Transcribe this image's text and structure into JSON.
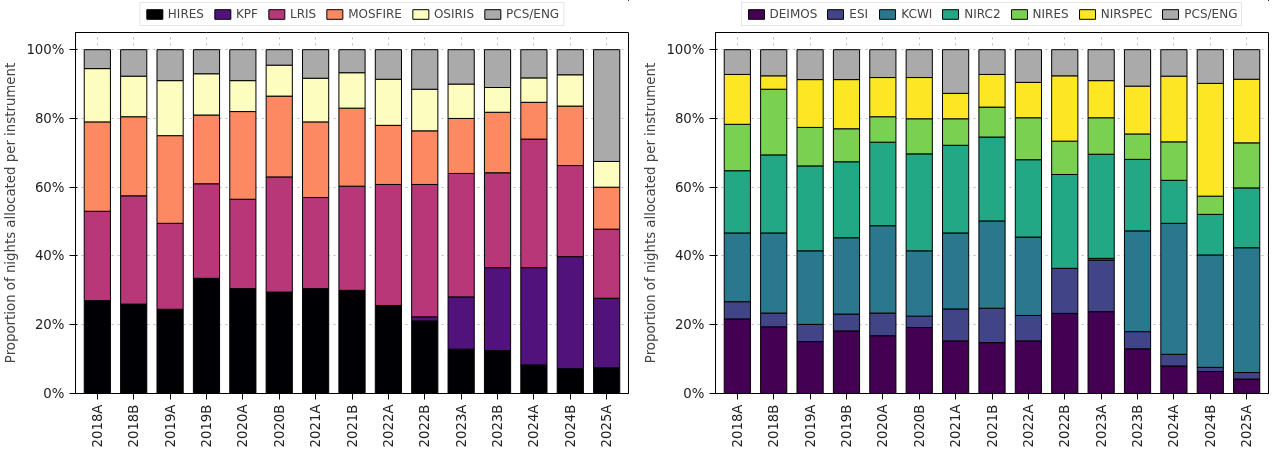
{
  "chart_data": [
    {
      "type": "bar",
      "stacked": true,
      "ylabel": "Proportion of nights allocated per instrument",
      "categories": [
        "2018A",
        "2018B",
        "2019A",
        "2019B",
        "2020A",
        "2020B",
        "2021A",
        "2021B",
        "2022A",
        "2022B",
        "2023A",
        "2023B",
        "2024A",
        "2024B",
        "2025A"
      ],
      "ylim": [
        0,
        105
      ],
      "yticks": [
        {
          "value": 0,
          "label": "0%"
        },
        {
          "value": 20,
          "label": "20%"
        },
        {
          "value": 40,
          "label": "40%"
        },
        {
          "value": 60,
          "label": "60%"
        },
        {
          "value": 80,
          "label": "80%"
        },
        {
          "value": 100,
          "label": "100%"
        }
      ],
      "grid": true,
      "legend": "top",
      "series": [
        {
          "name": "HIRES",
          "color": "#000004",
          "values": [
            27,
            26,
            24.5,
            33.5,
            30.5,
            29.5,
            30.5,
            30,
            25.6,
            21.1,
            12.9,
            12.5,
            8.3,
            7.2,
            7.5
          ]
        },
        {
          "name": "KPF",
          "color": "#51127c",
          "values": [
            0,
            0,
            0,
            0,
            0,
            0,
            0,
            0,
            0,
            1.2,
            15.2,
            24.1,
            28.3,
            32.6,
            20.2
          ]
        },
        {
          "name": "LRIS",
          "color": "#b73779",
          "values": [
            26,
            31.5,
            25,
            27.5,
            26,
            33.5,
            26.5,
            30.3,
            35.2,
            38.5,
            35.9,
            27.6,
            37.4,
            26.5,
            20.1
          ]
        },
        {
          "name": "MOSFIRE",
          "color": "#fc8961",
          "values": [
            26,
            23,
            25.5,
            20,
            25.5,
            23.5,
            22,
            22.7,
            17.2,
            15.6,
            16,
            17.6,
            10.7,
            17.3,
            12.2
          ]
        },
        {
          "name": "OSIRIS",
          "color": "#fcfdbf",
          "values": [
            15.5,
            11.8,
            16,
            12,
            9,
            9,
            12.7,
            10.3,
            13.4,
            12.1,
            10,
            7.2,
            7.1,
            9.1,
            7.5
          ]
        },
        {
          "name": "PCS/ENG",
          "color": "#aaaaaa",
          "values": [
            5.5,
            7.7,
            9,
            7,
            9,
            4.5,
            8.3,
            6.7,
            8.6,
            11.5,
            10,
            11,
            8.2,
            7.3,
            32.5
          ]
        }
      ]
    },
    {
      "type": "bar",
      "stacked": true,
      "ylabel": "Proportion of nights allocated per instrument",
      "categories": [
        "2018A",
        "2018B",
        "2019A",
        "2019B",
        "2020A",
        "2020B",
        "2021A",
        "2021B",
        "2022A",
        "2022B",
        "2023A",
        "2023B",
        "2024A",
        "2024B",
        "2025A"
      ],
      "ylim": [
        0,
        105
      ],
      "yticks": [
        {
          "value": 0,
          "label": "0%"
        },
        {
          "value": 20,
          "label": "20%"
        },
        {
          "value": 40,
          "label": "40%"
        },
        {
          "value": 60,
          "label": "60%"
        },
        {
          "value": 80,
          "label": "80%"
        },
        {
          "value": 100,
          "label": "100%"
        }
      ],
      "grid": true,
      "legend": "top",
      "series": [
        {
          "name": "DEIMOS",
          "color": "#440154",
          "values": [
            21.7,
            19.4,
            15.1,
            18.2,
            16.8,
            19.2,
            15.3,
            14.8,
            15.3,
            23.3,
            23.8,
            13,
            8,
            6.4,
            4.2
          ]
        },
        {
          "name": "ESI",
          "color": "#414487",
          "values": [
            5,
            4,
            5,
            4.9,
            6.6,
            3.3,
            9.3,
            10,
            7.4,
            13.1,
            15,
            5,
            3.4,
            1.2,
            1.9
          ]
        },
        {
          "name": "KCWI",
          "color": "#2a788e",
          "values": [
            20,
            23.3,
            21.4,
            22.2,
            25.4,
            19,
            22.1,
            25.4,
            22.8,
            0,
            0.5,
            29.3,
            38.1,
            32.7,
            36.3
          ]
        },
        {
          "name": "NIRC2",
          "color": "#22a884",
          "values": [
            18.1,
            22.7,
            24.7,
            22.1,
            24.3,
            28.2,
            25.5,
            24.4,
            22.5,
            27.3,
            30.3,
            20.8,
            12.5,
            11.8,
            17.4
          ]
        },
        {
          "name": "NIRES",
          "color": "#7ad151",
          "values": [
            13.5,
            19.1,
            11.2,
            9.6,
            7.4,
            10.2,
            7.7,
            8.7,
            12.2,
            9.7,
            10.6,
            7.4,
            11.2,
            5.3,
            13.1
          ]
        },
        {
          "name": "NIRSPEC",
          "color": "#fde725",
          "values": [
            14.5,
            3.9,
            13.9,
            14.3,
            11.4,
            12,
            7.4,
            9.5,
            10.3,
            19,
            10.8,
            13.9,
            19.1,
            32.8,
            18.5
          ]
        },
        {
          "name": "PCS/ENG",
          "color": "#aaaaaa",
          "values": [
            7.2,
            7.6,
            8.7,
            8.7,
            8.1,
            8.1,
            12.7,
            7.2,
            9.5,
            7.6,
            9,
            10.6,
            7.7,
            9.8,
            8.6
          ]
        }
      ]
    }
  ]
}
